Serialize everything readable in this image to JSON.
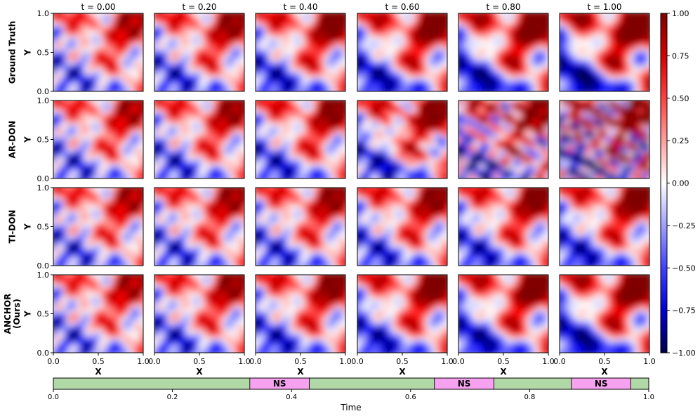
{
  "chart_data": [
    {
      "type": "heatmap",
      "title": "",
      "column_titles": [
        "t = 0.00",
        "t = 0.20",
        "t = 0.40",
        "t = 0.60",
        "t = 0.80",
        "t = 1.00"
      ],
      "t_values": [
        0.0,
        0.2,
        0.4,
        0.6,
        0.8,
        1.0
      ],
      "row_labels": [
        "Ground Truth",
        "AR-DON",
        "TI-DON",
        "ANCHOR\n(Ours)"
      ],
      "xlabel": "X",
      "ylabel": "Y",
      "xlim": [
        0.0,
        1.0
      ],
      "ylim": [
        0.0,
        1.0
      ],
      "x_ticks": [
        "0.0",
        "0.5",
        "1.0"
      ],
      "y_ticks": [
        "0.0",
        "0.5",
        "1.0"
      ],
      "colormap": "seismic",
      "colorbar": {
        "range": [
          -1.0,
          1.0
        ],
        "ticks": [
          "1.00",
          "0.75",
          "0.50",
          "0.25",
          "0.00",
          "−0.25",
          "−0.50",
          "−0.75",
          "−1.00"
        ],
        "tick_values": [
          1.0,
          0.75,
          0.5,
          0.25,
          0.0,
          -0.25,
          -0.5,
          -0.75,
          -1.0
        ],
        "low_color": "#00004c",
        "mid_color": "#ffffff",
        "high_color": "#7f0000"
      },
      "grid": false,
      "legend": "none"
    },
    {
      "type": "bar",
      "xlabel": "Time",
      "xlim": [
        0.0,
        1.0
      ],
      "x_ticks": [
        "0.0",
        "0.2",
        "0.4",
        "0.6",
        "0.8",
        "1.0"
      ],
      "tick_values": [
        0.0,
        0.2,
        0.4,
        0.6,
        0.8,
        1.0
      ],
      "segments": [
        {
          "start": 0.0,
          "end": 0.33,
          "label": "",
          "color": "#b1d9a7"
        },
        {
          "start": 0.33,
          "end": 0.43,
          "label": "NS",
          "color": "#f7a2f0"
        },
        {
          "start": 0.43,
          "end": 0.64,
          "label": "",
          "color": "#b1d9a7"
        },
        {
          "start": 0.64,
          "end": 0.74,
          "label": "NS",
          "color": "#f7a2f0"
        },
        {
          "start": 0.74,
          "end": 0.87,
          "label": "",
          "color": "#b1d9a7"
        },
        {
          "start": 0.87,
          "end": 0.97,
          "label": "NS",
          "color": "#f7a2f0"
        },
        {
          "start": 0.97,
          "end": 1.0,
          "label": "",
          "color": "#b1d9a7"
        }
      ]
    }
  ]
}
